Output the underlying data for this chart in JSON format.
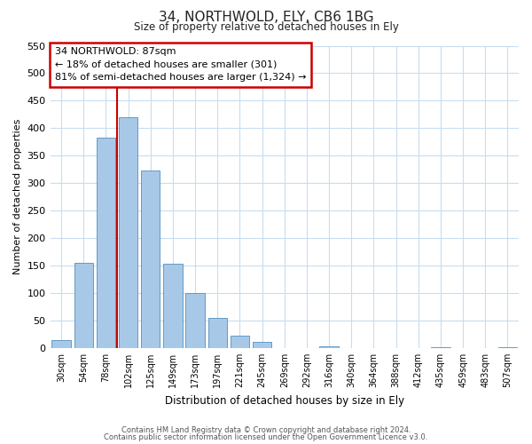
{
  "title": "34, NORTHWOLD, ELY, CB6 1BG",
  "subtitle": "Size of property relative to detached houses in Ely",
  "xlabel": "Distribution of detached houses by size in Ely",
  "ylabel": "Number of detached properties",
  "bar_labels": [
    "30sqm",
    "54sqm",
    "78sqm",
    "102sqm",
    "125sqm",
    "149sqm",
    "173sqm",
    "197sqm",
    "221sqm",
    "245sqm",
    "269sqm",
    "292sqm",
    "316sqm",
    "340sqm",
    "364sqm",
    "388sqm",
    "412sqm",
    "435sqm",
    "459sqm",
    "483sqm",
    "507sqm"
  ],
  "bar_values": [
    15,
    155,
    383,
    420,
    323,
    153,
    100,
    55,
    22,
    12,
    0,
    0,
    3,
    0,
    0,
    0,
    0,
    2,
    0,
    0,
    2
  ],
  "bar_color": "#a8c8e8",
  "bar_edge_color": "#5090c0",
  "vline_color": "#cc0000",
  "vline_index": 2.5,
  "ylim": [
    0,
    550
  ],
  "yticks": [
    0,
    50,
    100,
    150,
    200,
    250,
    300,
    350,
    400,
    450,
    500,
    550
  ],
  "annotation_text": "34 NORTHWOLD: 87sqm\n← 18% of detached houses are smaller (301)\n81% of semi-detached houses are larger (1,324) →",
  "footer1": "Contains HM Land Registry data © Crown copyright and database right 2024.",
  "footer2": "Contains public sector information licensed under the Open Government Licence v3.0.",
  "bg_color": "#ffffff",
  "grid_color": "#c8ddf0",
  "annotation_box_color": "#ffffff",
  "annotation_box_edge": "#cc0000"
}
